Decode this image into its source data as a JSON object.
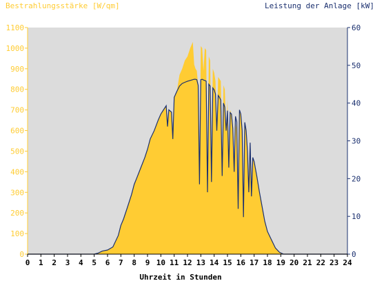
{
  "chart_data": {
    "type": "area",
    "left_axis_title": "Bestrahlungsstärke [W/qm]",
    "right_axis_title": "Leistung der Anlage [kW]",
    "xlabel": "Uhrzeit in Stunden",
    "xlim": [
      0,
      24
    ],
    "left_ylim": [
      0,
      1100
    ],
    "right_ylim": [
      0,
      60
    ],
    "x_ticks": [
      0,
      1,
      2,
      3,
      4,
      5,
      6,
      7,
      8,
      9,
      10,
      11,
      12,
      13,
      14,
      15,
      16,
      17,
      18,
      19,
      20,
      21,
      22,
      23,
      24
    ],
    "left_ticks": [
      0,
      100,
      200,
      300,
      400,
      500,
      600,
      700,
      800,
      900,
      1000,
      1100
    ],
    "right_ticks": [
      0,
      10,
      20,
      30,
      40,
      50,
      60
    ],
    "colors": {
      "plot_background": "#dcdcdc",
      "irradiance_fill": "#ffcc33",
      "power_line": "#1a2f6e",
      "left_axis_text": "#ffcc33",
      "right_axis_text": "#1a2f6e",
      "x_axis_text": "#000000"
    },
    "series": [
      {
        "axis": "left",
        "style": "filled-area",
        "x": [
          0,
          5.0,
          5.3,
          5.6,
          6.0,
          6.4,
          6.8,
          7.0,
          7.2,
          7.5,
          7.8,
          8.0,
          8.2,
          8.5,
          8.8,
          9.0,
          9.2,
          9.5,
          9.8,
          10.0,
          10.2,
          10.4,
          10.5,
          10.6,
          10.8,
          10.9,
          11.0,
          11.2,
          11.4,
          11.6,
          11.8,
          12.0,
          12.2,
          12.4,
          12.5,
          12.6,
          12.7,
          12.8,
          12.9,
          13.0,
          13.1,
          13.2,
          13.3,
          13.4,
          13.5,
          13.6,
          13.7,
          13.8,
          13.9,
          14.0,
          14.1,
          14.2,
          14.3,
          14.4,
          14.5,
          14.6,
          14.7,
          14.8,
          14.9,
          15.0,
          15.1,
          15.2,
          15.3,
          15.4,
          15.5,
          15.6,
          15.7,
          15.8,
          15.9,
          16.0,
          16.1,
          16.2,
          16.3,
          16.4,
          16.5,
          16.6,
          16.7,
          16.8,
          16.9,
          17.0,
          17.2,
          17.4,
          17.6,
          17.8,
          18.0,
          18.3,
          18.6,
          18.9,
          19.2,
          19.5,
          19.8,
          24
        ],
        "y": [
          0,
          0,
          5,
          15,
          20,
          35,
          90,
          140,
          170,
          230,
          290,
          340,
          370,
          420,
          470,
          510,
          560,
          600,
          650,
          680,
          700,
          720,
          620,
          700,
          690,
          560,
          760,
          790,
          870,
          900,
          940,
          960,
          1000,
          1030,
          920,
          900,
          890,
          820,
          340,
          1010,
          1000,
          890,
          1000,
          990,
          300,
          960,
          940,
          350,
          900,
          880,
          840,
          600,
          860,
          850,
          840,
          380,
          820,
          800,
          600,
          750,
          420,
          700,
          680,
          610,
          400,
          640,
          600,
          220,
          700,
          680,
          600,
          180,
          640,
          600,
          500,
          300,
          540,
          280,
          470,
          450,
          380,
          300,
          230,
          160,
          110,
          70,
          30,
          10,
          0,
          0,
          0,
          0
        ]
      },
      {
        "axis": "right",
        "style": "line",
        "x": [
          0,
          5.0,
          5.3,
          5.6,
          6.0,
          6.4,
          6.8,
          7.0,
          7.2,
          7.5,
          7.8,
          8.0,
          8.2,
          8.5,
          8.8,
          9.0,
          9.2,
          9.5,
          9.8,
          10.0,
          10.2,
          10.4,
          10.5,
          10.6,
          10.8,
          10.9,
          11.0,
          11.2,
          11.4,
          11.6,
          11.8,
          12.0,
          12.2,
          12.4,
          12.5,
          12.6,
          12.7,
          12.8,
          12.9,
          13.0,
          13.1,
          13.2,
          13.3,
          13.4,
          13.5,
          13.6,
          13.7,
          13.8,
          13.9,
          14.0,
          14.1,
          14.2,
          14.3,
          14.4,
          14.5,
          14.6,
          14.7,
          14.8,
          14.9,
          15.0,
          15.1,
          15.2,
          15.3,
          15.4,
          15.5,
          15.6,
          15.7,
          15.8,
          15.9,
          16.0,
          16.1,
          16.2,
          16.3,
          16.4,
          16.5,
          16.6,
          16.7,
          16.8,
          16.9,
          17.0,
          17.2,
          17.4,
          17.6,
          17.8,
          18.0,
          18.3,
          18.6,
          18.9,
          19.2,
          19.5,
          19.8,
          24
        ],
        "y": [
          0,
          0,
          0.3,
          0.8,
          1.1,
          1.9,
          4.9,
          7.6,
          9.3,
          12.5,
          15.8,
          18.5,
          20.2,
          22.9,
          25.6,
          27.8,
          30.5,
          32.7,
          35.5,
          37.1,
          38.2,
          39.3,
          33.8,
          38.2,
          37.6,
          30.5,
          41.5,
          43.1,
          44.5,
          45.2,
          45.5,
          45.8,
          46.0,
          46.2,
          46.3,
          46.3,
          46.2,
          44.7,
          18.5,
          46.2,
          46.3,
          46.1,
          46.0,
          45.8,
          16.4,
          45.0,
          44.5,
          19.1,
          44.0,
          43.5,
          42.4,
          32.7,
          42.0,
          41.5,
          40.8,
          20.7,
          40.0,
          38.9,
          32.7,
          38.0,
          22.9,
          37.5,
          37.1,
          33.3,
          21.8,
          36.5,
          35.0,
          12.0,
          38.2,
          37.1,
          32.7,
          9.8,
          34.9,
          32.7,
          27.3,
          16.4,
          29.5,
          15.3,
          25.6,
          24.5,
          20.7,
          16.4,
          12.5,
          8.7,
          6.0,
          3.8,
          1.6,
          0.5,
          0,
          0,
          0,
          0
        ]
      }
    ]
  }
}
